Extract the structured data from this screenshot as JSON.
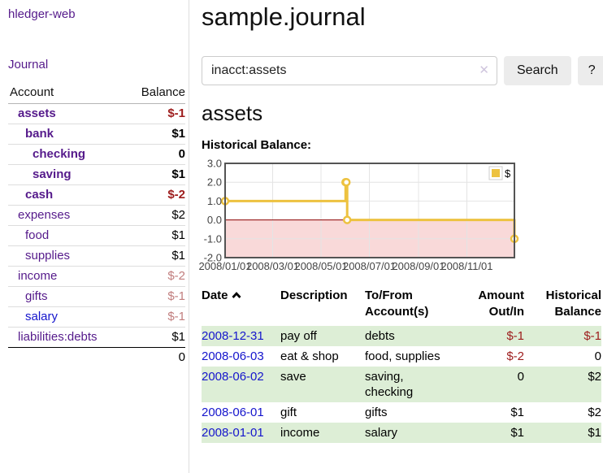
{
  "colors": {
    "link_purple": "#551a8b",
    "link_blue": "#1515cc",
    "negative": "#9d1c1c",
    "negative_soft": "#c17d7d",
    "stripe_green": "#ddeed6",
    "button_bg": "#ececec",
    "input_border": "#cccccc",
    "clear_icon": "#cfc5dd",
    "divider": "#dddddd",
    "row_border": "#dddddd"
  },
  "sidebar": {
    "app_title": "hledger-web",
    "journal_link": "Journal",
    "accounts_table": {
      "account_header": "Account",
      "balance_header": "Balance",
      "rows": [
        {
          "name": "assets",
          "indent": 0,
          "bold": true,
          "link": "purple",
          "balance": "$-1",
          "balance_class": "neg"
        },
        {
          "name": "bank",
          "indent": 1,
          "bold": true,
          "link": "purple",
          "balance": "$1",
          "balance_class": ""
        },
        {
          "name": "checking",
          "indent": 2,
          "bold": true,
          "link": "purple",
          "balance": "0",
          "balance_class": ""
        },
        {
          "name": "saving",
          "indent": 2,
          "bold": true,
          "link": "purple",
          "balance": "$1",
          "balance_class": ""
        },
        {
          "name": "cash",
          "indent": 1,
          "bold": true,
          "link": "purple",
          "balance": "$-2",
          "balance_class": "neg"
        },
        {
          "name": "expenses",
          "indent": 0,
          "bold": false,
          "link": "purple",
          "balance": "$2",
          "balance_class": ""
        },
        {
          "name": "food",
          "indent": 1,
          "bold": false,
          "link": "purple",
          "balance": "$1",
          "balance_class": ""
        },
        {
          "name": "supplies",
          "indent": 1,
          "bold": false,
          "link": "purple",
          "balance": "$1",
          "balance_class": ""
        },
        {
          "name": "income",
          "indent": 0,
          "bold": false,
          "link": "purple",
          "balance": "$-2",
          "balance_class": "neg-soft"
        },
        {
          "name": "gifts",
          "indent": 1,
          "bold": false,
          "link": "purple",
          "balance": "$-1",
          "balance_class": "neg-soft"
        },
        {
          "name": "salary",
          "indent": 1,
          "bold": false,
          "link": "blue",
          "balance": "$-1",
          "balance_class": "neg-soft"
        },
        {
          "name": "liabilities:debts",
          "indent": 0,
          "bold": false,
          "link": "purple",
          "balance": "$1",
          "balance_class": ""
        }
      ],
      "total": "0"
    }
  },
  "main": {
    "title": "sample.journal",
    "search": {
      "value": "inacct:assets",
      "clear_icon": "✕",
      "search_button": "Search",
      "help_button": "?"
    },
    "account_heading": "assets",
    "chart_label": "Historical Balance:",
    "register": {
      "headers": {
        "date": "Date",
        "description": "Description",
        "accounts": "To/From Account(s)",
        "amount": "Amount Out/In",
        "balance": "Historical Balance"
      },
      "sort_icon": "chevron-up",
      "rows": [
        {
          "date": "2008-12-31",
          "description": "pay off",
          "accounts": "debts",
          "amount": "$-1",
          "amount_class": "neg",
          "balance": "$-1",
          "balance_class": "neg",
          "highlight": true
        },
        {
          "date": "2008-06-03",
          "description": "eat & shop",
          "accounts": "food, supplies",
          "amount": "$-2",
          "amount_class": "neg",
          "balance": "0",
          "balance_class": "",
          "highlight": false
        },
        {
          "date": "2008-06-02",
          "description": "save",
          "accounts": "saving, checking",
          "amount": "0",
          "amount_class": "",
          "balance": "$2",
          "balance_class": "",
          "highlight": true
        },
        {
          "date": "2008-06-01",
          "description": "gift",
          "accounts": "gifts",
          "amount": "$1",
          "amount_class": "",
          "balance": "$2",
          "balance_class": "",
          "highlight": false
        },
        {
          "date": "2008-01-01",
          "description": "income",
          "accounts": "salary",
          "amount": "$1",
          "amount_class": "",
          "balance": "$1",
          "balance_class": "",
          "highlight": true
        }
      ]
    }
  },
  "chart_data": {
    "type": "line",
    "step": true,
    "title": "Historical Balance",
    "series": [
      {
        "name": "$",
        "color": "#edc240",
        "points": [
          {
            "x": "2008-01-01",
            "y": 1
          },
          {
            "x": "2008-06-01",
            "y": 2
          },
          {
            "x": "2008-06-02",
            "y": 2
          },
          {
            "x": "2008-06-03",
            "y": 0
          },
          {
            "x": "2008-12-31",
            "y": -1
          }
        ]
      }
    ],
    "x_start": "2008-01-01",
    "x_days": 365,
    "x_ticks": [
      "2008/01/01",
      "2008/03/01",
      "2008/05/01",
      "2008/07/01",
      "2008/09/01",
      "2008/11/01"
    ],
    "y_ticks": [
      "3.0",
      "2.0",
      "1.0",
      "0.0",
      "-1.0",
      "-2.0"
    ],
    "ylim": [
      -2,
      3
    ],
    "grid": true,
    "grid_color": "#e4e4e4",
    "label_color": "#444444",
    "border_color": "#545454",
    "negative_region_color": "#f9d9d9",
    "zero_line_color": "#8b0000",
    "legend": {
      "label": "$",
      "swatch_color": "#edc240",
      "position": "top-right"
    }
  }
}
